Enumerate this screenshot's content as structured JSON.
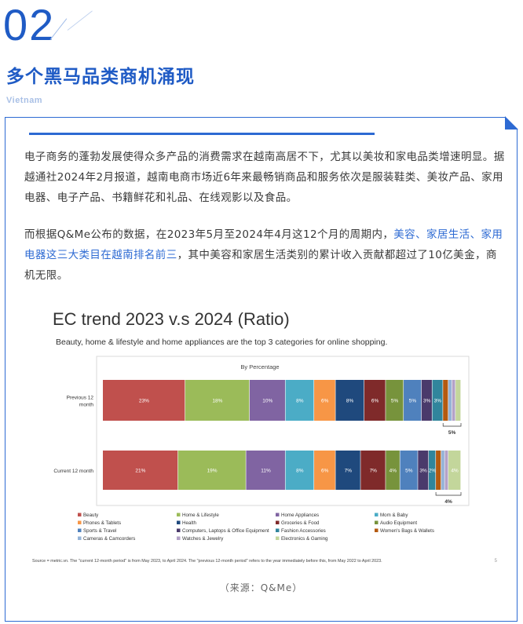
{
  "section": {
    "number": "02",
    "title": "多个黑马品类商机涌现",
    "region": "Vietnam"
  },
  "paragraphs": {
    "p1": "电子商务的蓬勃发展使得众多产品的消费需求在越南高居不下，尤其以美妆和家电品类增速明显。据越通社2024年2月报道，越南电商市场近6年来最畅销商品和服务依次是服装鞋类、美妆产品、家用电器、电子产品、书籍鲜花和礼品、在线观影以及食品。",
    "p2_before": "而根据Q&Me公布的数据，在2023年5月至2024年4月这12个月的周期内，",
    "p2_highlight": "美容、家居生活、家用电器这三大类目在越南排名前三",
    "p2_after": "，其中美容和家居生活类别的累计收入贡献都超过了10亿美金，商机无限。"
  },
  "chart_data": {
    "type": "bar",
    "orientation": "horizontal-stacked-100",
    "title": "EC trend 2023 v.s 2024 (Ratio)",
    "subtitle": "Beauty, home & lifestyle and home appliances are the top 3 categories for online shopping.",
    "inner_title": "By Percentage",
    "categories": [
      "Previous 12\nmonth",
      "Current 12 month"
    ],
    "series": [
      {
        "name": "Beauty",
        "color": "#c0504d",
        "values": [
          23,
          21
        ]
      },
      {
        "name": "Home & Lifestyle",
        "color": "#9bbb59",
        "values": [
          18,
          19
        ]
      },
      {
        "name": "Home Appliances",
        "color": "#8064a2",
        "values": [
          10,
          11
        ]
      },
      {
        "name": "Mom & Baby",
        "color": "#4bacc6",
        "values": [
          8,
          8
        ]
      },
      {
        "name": "Phones & Tablets",
        "color": "#f79646",
        "values": [
          6,
          6
        ]
      },
      {
        "name": "Health",
        "color": "#1f497d",
        "values": [
          8,
          7
        ]
      },
      {
        "name": "Groceries & Food",
        "color": "#7f2a2a",
        "values": [
          6,
          7
        ]
      },
      {
        "name": "Audio Equipment",
        "color": "#77933c",
        "values": [
          5,
          4
        ]
      },
      {
        "name": "Sports & Travel",
        "color": "#4f81bd",
        "values": [
          5,
          5
        ]
      },
      {
        "name": "Computers, Laptops & Office Equipment",
        "color": "#4a3a6b",
        "values": [
          3,
          3
        ]
      },
      {
        "name": "Fashion Accessories",
        "color": "#31859c",
        "values": [
          3,
          2
        ]
      },
      {
        "name": "Women's Bags & Wallets",
        "color": "#b45a10",
        "values": [
          1.5,
          1.5
        ]
      },
      {
        "name": "Cameras & Camcorders",
        "color": "#95b3d7",
        "values": [
          1,
          1
        ]
      },
      {
        "name": "Watches & Jewelry",
        "color": "#b3a2c7",
        "values": [
          1,
          1
        ]
      },
      {
        "name": "Electronics & Gaming",
        "color": "#c3d69b",
        "values": [
          1.5,
          3.5
        ]
      }
    ],
    "bracket_labels": [
      "5%",
      "4%"
    ],
    "source_note": "Source = metric.vn. The \"current 12-month period\" is from May 2023, to April 2024. The \"previous 12-month period\" refers to the year immediately before this, from May 2022 to April 2023.",
    "page_number": "5",
    "legend_position": "bottom"
  },
  "source": "（来源：Q&Me）"
}
